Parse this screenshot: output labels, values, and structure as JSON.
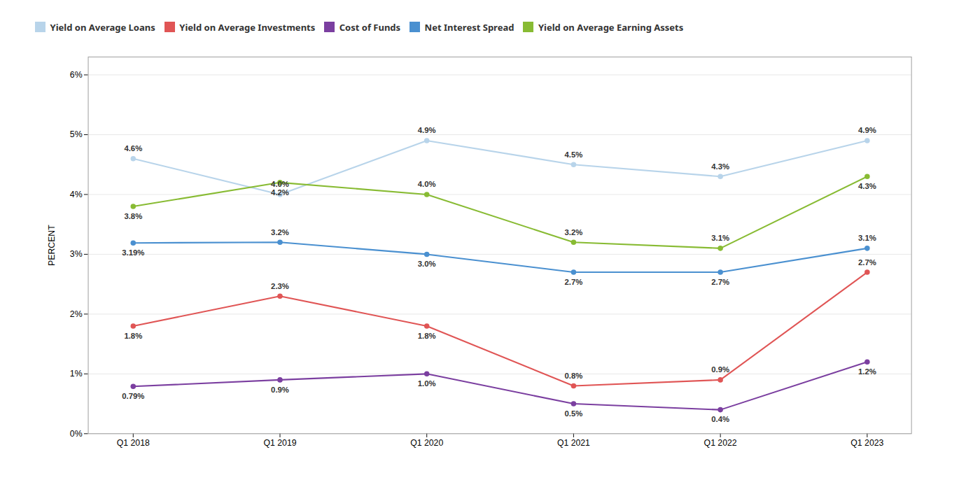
{
  "chart_data": {
    "type": "line",
    "categories": [
      "Q1 2018",
      "Q1 2019",
      "Q1 2020",
      "Q1 2021",
      "Q1 2022",
      "Q1 2023"
    ],
    "series": [
      {
        "name": "Yield on Average Loans",
        "color": "#b8d4ea",
        "values": [
          4.6,
          4.0,
          4.9,
          4.5,
          4.3,
          4.9
        ],
        "value_labels": [
          "4.6%",
          "4.0%",
          "4.9%",
          "4.5%",
          "4.3%",
          "4.9%"
        ]
      },
      {
        "name": "Yield on Average Investments",
        "color": "#e05555",
        "values": [
          1.8,
          2.3,
          1.8,
          0.8,
          0.9,
          2.7
        ],
        "value_labels": [
          "1.8%",
          "2.3%",
          "1.8%",
          "0.8%",
          "0.9%",
          "2.7%"
        ]
      },
      {
        "name": "Cost of Funds",
        "color": "#7b3fa0",
        "values": [
          0.79,
          0.9,
          1.0,
          0.5,
          0.4,
          1.2
        ],
        "value_labels": [
          "0.79%",
          "0.9%",
          "1.0%",
          "0.5%",
          "0.4%",
          "1.2%"
        ]
      },
      {
        "name": "Net Interest Spread",
        "color": "#4a90d0",
        "values": [
          3.19,
          3.2,
          3.0,
          2.7,
          2.7,
          3.1
        ],
        "value_labels": [
          "3.19%",
          "3.2%",
          "3.0%",
          "2.7%",
          "2.7%",
          "3.1%"
        ]
      },
      {
        "name": "Yield on Average Earning Assets",
        "color": "#88bb33",
        "values": [
          3.8,
          4.2,
          4.0,
          3.2,
          3.1,
          4.3
        ],
        "value_labels": [
          "3.8%",
          "4.2%",
          "4.0%",
          "3.2%",
          "3.1%",
          "4.3%"
        ]
      }
    ],
    "ylabel": "PERCENT",
    "ylim": [
      0,
      6.3
    ],
    "yticks": [
      {
        "value": 0,
        "label": "0%"
      },
      {
        "value": 1,
        "label": "1%"
      },
      {
        "value": 2,
        "label": "2%"
      },
      {
        "value": 3,
        "label": "3%"
      },
      {
        "value": 4,
        "label": "4%"
      },
      {
        "value": 5,
        "label": "5%"
      },
      {
        "value": 6,
        "label": "6%"
      }
    ],
    "grid": true,
    "legend": "upper left",
    "marker": "circle",
    "data_labels": true
  }
}
